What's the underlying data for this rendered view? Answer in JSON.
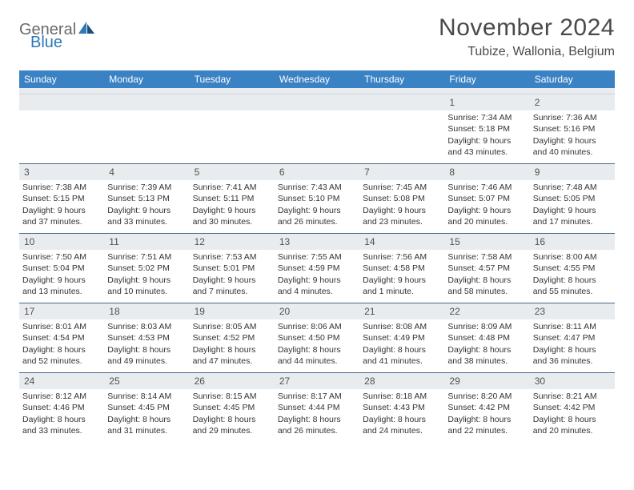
{
  "brand": {
    "part1": "General",
    "part2": "Blue"
  },
  "title": "November 2024",
  "location": "Tubize, Wallonia, Belgium",
  "colors": {
    "header_bg": "#3a82c4",
    "daynum_bg": "#e9ecef",
    "rule": "#4a6a8a",
    "text": "#333333",
    "brand_gray": "#6a6a6a",
    "brand_blue": "#2e77b8"
  },
  "dow": [
    "Sunday",
    "Monday",
    "Tuesday",
    "Wednesday",
    "Thursday",
    "Friday",
    "Saturday"
  ],
  "weeks": [
    [
      {
        "n": "",
        "sunrise": "",
        "sunset": "",
        "daylight": ""
      },
      {
        "n": "",
        "sunrise": "",
        "sunset": "",
        "daylight": ""
      },
      {
        "n": "",
        "sunrise": "",
        "sunset": "",
        "daylight": ""
      },
      {
        "n": "",
        "sunrise": "",
        "sunset": "",
        "daylight": ""
      },
      {
        "n": "",
        "sunrise": "",
        "sunset": "",
        "daylight": ""
      },
      {
        "n": "1",
        "sunrise": "Sunrise: 7:34 AM",
        "sunset": "Sunset: 5:18 PM",
        "daylight": "Daylight: 9 hours and 43 minutes."
      },
      {
        "n": "2",
        "sunrise": "Sunrise: 7:36 AM",
        "sunset": "Sunset: 5:16 PM",
        "daylight": "Daylight: 9 hours and 40 minutes."
      }
    ],
    [
      {
        "n": "3",
        "sunrise": "Sunrise: 7:38 AM",
        "sunset": "Sunset: 5:15 PM",
        "daylight": "Daylight: 9 hours and 37 minutes."
      },
      {
        "n": "4",
        "sunrise": "Sunrise: 7:39 AM",
        "sunset": "Sunset: 5:13 PM",
        "daylight": "Daylight: 9 hours and 33 minutes."
      },
      {
        "n": "5",
        "sunrise": "Sunrise: 7:41 AM",
        "sunset": "Sunset: 5:11 PM",
        "daylight": "Daylight: 9 hours and 30 minutes."
      },
      {
        "n": "6",
        "sunrise": "Sunrise: 7:43 AM",
        "sunset": "Sunset: 5:10 PM",
        "daylight": "Daylight: 9 hours and 26 minutes."
      },
      {
        "n": "7",
        "sunrise": "Sunrise: 7:45 AM",
        "sunset": "Sunset: 5:08 PM",
        "daylight": "Daylight: 9 hours and 23 minutes."
      },
      {
        "n": "8",
        "sunrise": "Sunrise: 7:46 AM",
        "sunset": "Sunset: 5:07 PM",
        "daylight": "Daylight: 9 hours and 20 minutes."
      },
      {
        "n": "9",
        "sunrise": "Sunrise: 7:48 AM",
        "sunset": "Sunset: 5:05 PM",
        "daylight": "Daylight: 9 hours and 17 minutes."
      }
    ],
    [
      {
        "n": "10",
        "sunrise": "Sunrise: 7:50 AM",
        "sunset": "Sunset: 5:04 PM",
        "daylight": "Daylight: 9 hours and 13 minutes."
      },
      {
        "n": "11",
        "sunrise": "Sunrise: 7:51 AM",
        "sunset": "Sunset: 5:02 PM",
        "daylight": "Daylight: 9 hours and 10 minutes."
      },
      {
        "n": "12",
        "sunrise": "Sunrise: 7:53 AM",
        "sunset": "Sunset: 5:01 PM",
        "daylight": "Daylight: 9 hours and 7 minutes."
      },
      {
        "n": "13",
        "sunrise": "Sunrise: 7:55 AM",
        "sunset": "Sunset: 4:59 PM",
        "daylight": "Daylight: 9 hours and 4 minutes."
      },
      {
        "n": "14",
        "sunrise": "Sunrise: 7:56 AM",
        "sunset": "Sunset: 4:58 PM",
        "daylight": "Daylight: 9 hours and 1 minute."
      },
      {
        "n": "15",
        "sunrise": "Sunrise: 7:58 AM",
        "sunset": "Sunset: 4:57 PM",
        "daylight": "Daylight: 8 hours and 58 minutes."
      },
      {
        "n": "16",
        "sunrise": "Sunrise: 8:00 AM",
        "sunset": "Sunset: 4:55 PM",
        "daylight": "Daylight: 8 hours and 55 minutes."
      }
    ],
    [
      {
        "n": "17",
        "sunrise": "Sunrise: 8:01 AM",
        "sunset": "Sunset: 4:54 PM",
        "daylight": "Daylight: 8 hours and 52 minutes."
      },
      {
        "n": "18",
        "sunrise": "Sunrise: 8:03 AM",
        "sunset": "Sunset: 4:53 PM",
        "daylight": "Daylight: 8 hours and 49 minutes."
      },
      {
        "n": "19",
        "sunrise": "Sunrise: 8:05 AM",
        "sunset": "Sunset: 4:52 PM",
        "daylight": "Daylight: 8 hours and 47 minutes."
      },
      {
        "n": "20",
        "sunrise": "Sunrise: 8:06 AM",
        "sunset": "Sunset: 4:50 PM",
        "daylight": "Daylight: 8 hours and 44 minutes."
      },
      {
        "n": "21",
        "sunrise": "Sunrise: 8:08 AM",
        "sunset": "Sunset: 4:49 PM",
        "daylight": "Daylight: 8 hours and 41 minutes."
      },
      {
        "n": "22",
        "sunrise": "Sunrise: 8:09 AM",
        "sunset": "Sunset: 4:48 PM",
        "daylight": "Daylight: 8 hours and 38 minutes."
      },
      {
        "n": "23",
        "sunrise": "Sunrise: 8:11 AM",
        "sunset": "Sunset: 4:47 PM",
        "daylight": "Daylight: 8 hours and 36 minutes."
      }
    ],
    [
      {
        "n": "24",
        "sunrise": "Sunrise: 8:12 AM",
        "sunset": "Sunset: 4:46 PM",
        "daylight": "Daylight: 8 hours and 33 minutes."
      },
      {
        "n": "25",
        "sunrise": "Sunrise: 8:14 AM",
        "sunset": "Sunset: 4:45 PM",
        "daylight": "Daylight: 8 hours and 31 minutes."
      },
      {
        "n": "26",
        "sunrise": "Sunrise: 8:15 AM",
        "sunset": "Sunset: 4:45 PM",
        "daylight": "Daylight: 8 hours and 29 minutes."
      },
      {
        "n": "27",
        "sunrise": "Sunrise: 8:17 AM",
        "sunset": "Sunset: 4:44 PM",
        "daylight": "Daylight: 8 hours and 26 minutes."
      },
      {
        "n": "28",
        "sunrise": "Sunrise: 8:18 AM",
        "sunset": "Sunset: 4:43 PM",
        "daylight": "Daylight: 8 hours and 24 minutes."
      },
      {
        "n": "29",
        "sunrise": "Sunrise: 8:20 AM",
        "sunset": "Sunset: 4:42 PM",
        "daylight": "Daylight: 8 hours and 22 minutes."
      },
      {
        "n": "30",
        "sunrise": "Sunrise: 8:21 AM",
        "sunset": "Sunset: 4:42 PM",
        "daylight": "Daylight: 8 hours and 20 minutes."
      }
    ]
  ]
}
